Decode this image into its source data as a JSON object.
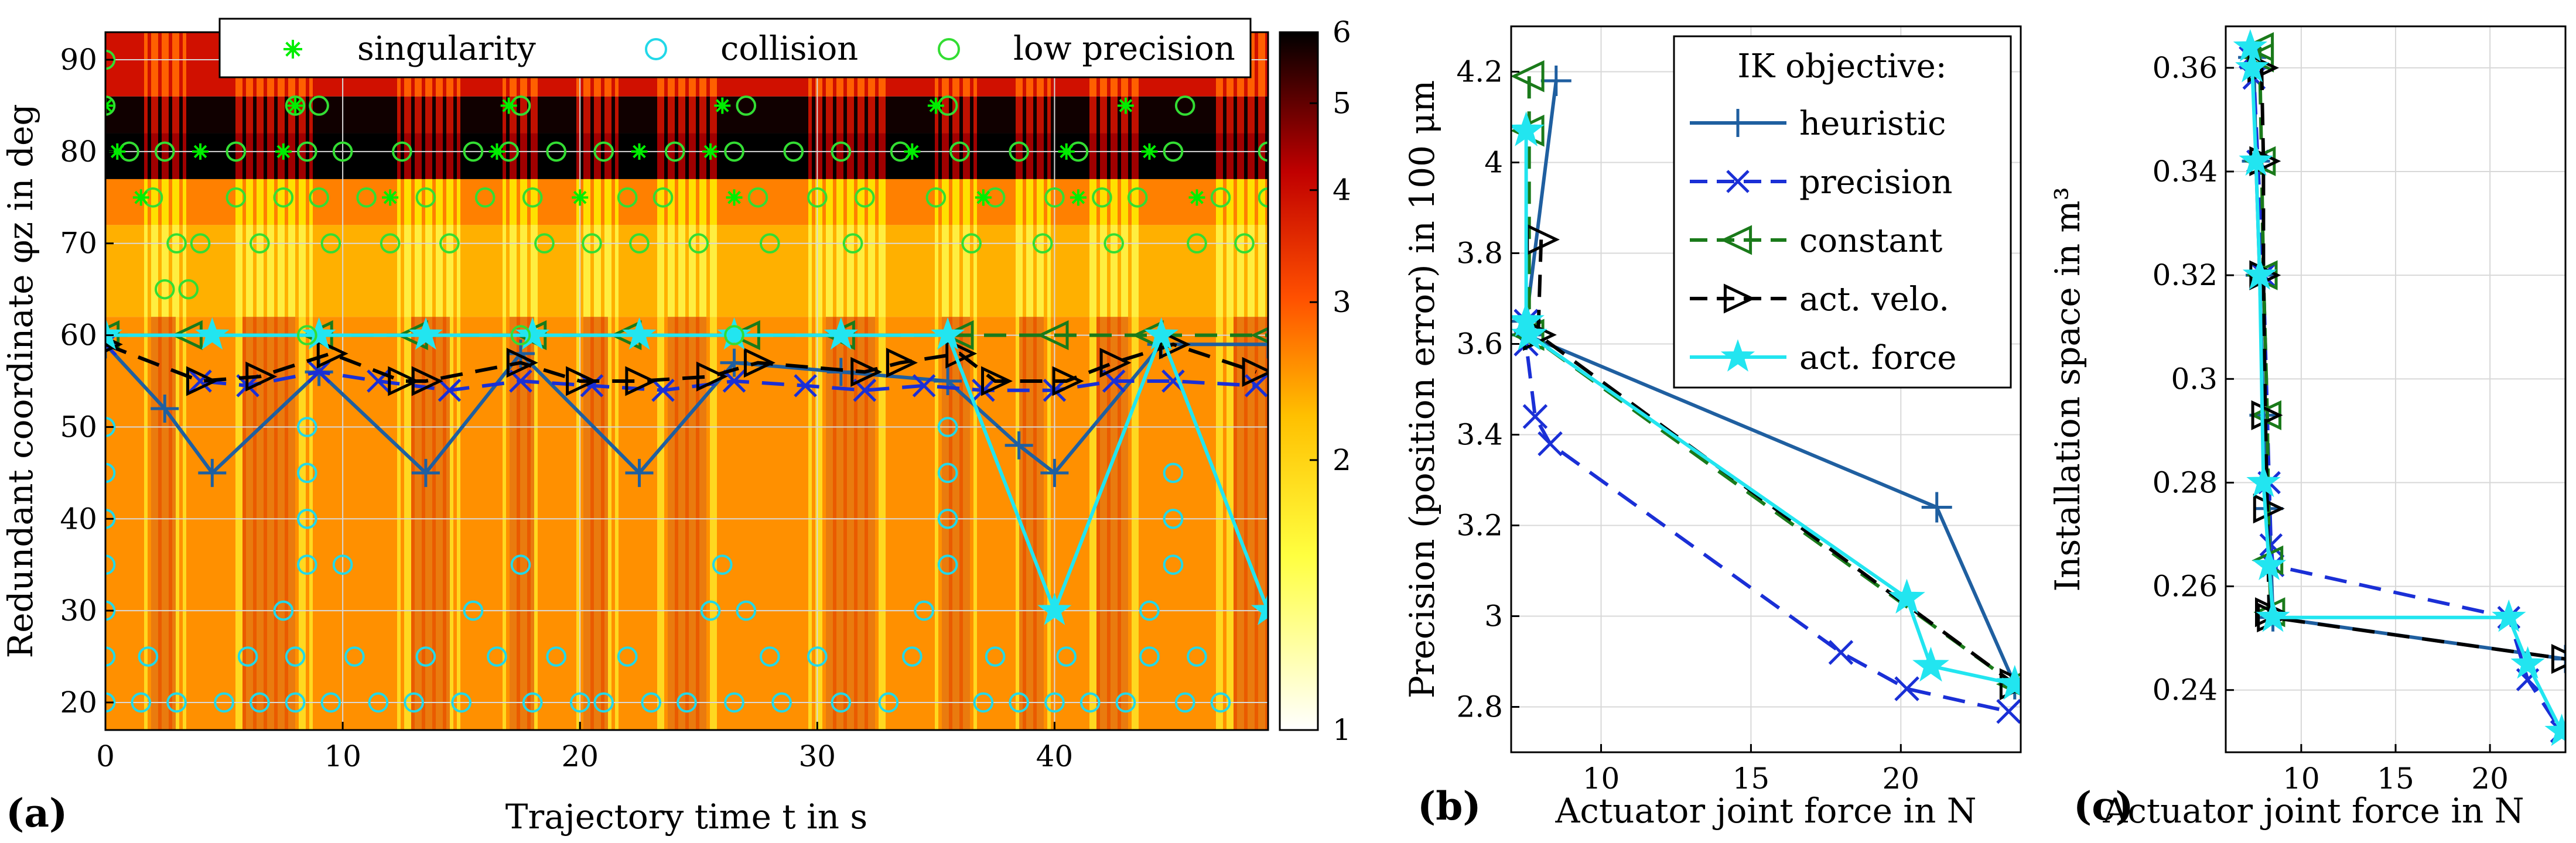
{
  "chart_data": [
    {
      "id": "a",
      "type": "heatmap",
      "panel_label": "(a)",
      "xlabel": "Trajectory time t in s",
      "ylabel": "Redundant coordinate φz in deg",
      "xlim": [
        0,
        49
      ],
      "ylim": [
        17,
        93
      ],
      "xticks": [
        0,
        10,
        20,
        30,
        40
      ],
      "yticks": [
        20,
        30,
        40,
        50,
        60,
        70,
        80,
        90
      ],
      "grid": true,
      "legend_position": "top",
      "colorbar": {
        "scale": "log",
        "range": [
          1,
          6
        ],
        "ticks": [
          1,
          2,
          3,
          4,
          5,
          6
        ],
        "colormap": [
          "#ffffff",
          "#ffff40",
          "#ffc000",
          "#ff5000",
          "#c00000",
          "#000000"
        ]
      },
      "legend": [
        {
          "label": "singularity",
          "marker": "asterisk",
          "color": "#00ee00"
        },
        {
          "label": "collision",
          "marker": "circle",
          "color": "#22d8e8"
        },
        {
          "label": "low precision",
          "marker": "circle",
          "color": "#33dd33"
        }
      ],
      "scatter": {
        "singularity": [
          [
            0,
            85
          ],
          [
            0.5,
            80
          ],
          [
            1.5,
            75
          ],
          [
            4,
            80
          ],
          [
            7.5,
            80
          ],
          [
            8,
            85
          ],
          [
            12,
            75
          ],
          [
            17,
            85
          ],
          [
            16.5,
            80
          ],
          [
            20,
            75
          ],
          [
            22.5,
            80
          ],
          [
            25.5,
            80
          ],
          [
            26,
            85
          ],
          [
            26.5,
            75
          ],
          [
            34,
            80
          ],
          [
            35,
            85
          ],
          [
            37,
            75
          ],
          [
            40.5,
            80
          ],
          [
            41,
            75
          ],
          [
            43,
            85
          ],
          [
            44,
            80
          ],
          [
            46,
            75
          ]
        ],
        "collision": [
          [
            0,
            20
          ],
          [
            0,
            25
          ],
          [
            0,
            30
          ],
          [
            0,
            35
          ],
          [
            0,
            40
          ],
          [
            0,
            45
          ],
          [
            0,
            50
          ],
          [
            1.5,
            20
          ],
          [
            1.8,
            25
          ],
          [
            3,
            20
          ],
          [
            5,
            20
          ],
          [
            6,
            25
          ],
          [
            6.5,
            20
          ],
          [
            7.5,
            30
          ],
          [
            8,
            20
          ],
          [
            8,
            25
          ],
          [
            8.5,
            35
          ],
          [
            8.5,
            40
          ],
          [
            8.5,
            45
          ],
          [
            8.5,
            50
          ],
          [
            9.5,
            20
          ],
          [
            10,
            35
          ],
          [
            10.5,
            25
          ],
          [
            11.5,
            20
          ],
          [
            13,
            20
          ],
          [
            13.5,
            25
          ],
          [
            15,
            20
          ],
          [
            15.5,
            30
          ],
          [
            16.5,
            25
          ],
          [
            17.5,
            35
          ],
          [
            18,
            20
          ],
          [
            19,
            25
          ],
          [
            20,
            20
          ],
          [
            21,
            20
          ],
          [
            22,
            25
          ],
          [
            23,
            20
          ],
          [
            24.5,
            20
          ],
          [
            25.5,
            30
          ],
          [
            26,
            35
          ],
          [
            26.5,
            20
          ],
          [
            27,
            30
          ],
          [
            28,
            25
          ],
          [
            28.5,
            20
          ],
          [
            30,
            25
          ],
          [
            31,
            20
          ],
          [
            33,
            20
          ],
          [
            34,
            25
          ],
          [
            34.5,
            30
          ],
          [
            35.5,
            35
          ],
          [
            35.5,
            40
          ],
          [
            35.5,
            45
          ],
          [
            35.5,
            50
          ],
          [
            37,
            20
          ],
          [
            37.5,
            25
          ],
          [
            38.5,
            20
          ],
          [
            40,
            20
          ],
          [
            40.5,
            25
          ],
          [
            41.5,
            20
          ],
          [
            43,
            20
          ],
          [
            44,
            25
          ],
          [
            45.5,
            20
          ],
          [
            46,
            25
          ],
          [
            47,
            20
          ],
          [
            44,
            30
          ],
          [
            45,
            35
          ],
          [
            45,
            40
          ],
          [
            45,
            45
          ]
        ],
        "low_precision": [
          [
            0,
            90
          ],
          [
            0,
            85
          ],
          [
            1,
            80
          ],
          [
            2,
            75
          ],
          [
            2.5,
            80
          ],
          [
            3,
            70
          ],
          [
            2.5,
            65
          ],
          [
            4,
            70
          ],
          [
            5.5,
            80
          ],
          [
            5.5,
            75
          ],
          [
            6.5,
            70
          ],
          [
            7.5,
            75
          ],
          [
            8.5,
            80
          ],
          [
            8,
            85
          ],
          [
            9,
            85
          ],
          [
            9,
            75
          ],
          [
            9.5,
            70
          ],
          [
            10,
            80
          ],
          [
            11,
            75
          ],
          [
            12,
            70
          ],
          [
            12.5,
            80
          ],
          [
            13.5,
            75
          ],
          [
            14.5,
            70
          ],
          [
            15.5,
            80
          ],
          [
            16,
            75
          ],
          [
            17,
            80
          ],
          [
            17.5,
            85
          ],
          [
            18,
            75
          ],
          [
            18.5,
            70
          ],
          [
            19,
            80
          ],
          [
            20.5,
            70
          ],
          [
            21,
            80
          ],
          [
            22,
            75
          ],
          [
            22.5,
            70
          ],
          [
            23.5,
            75
          ],
          [
            24,
            80
          ],
          [
            25,
            70
          ],
          [
            26.5,
            80
          ],
          [
            27,
            85
          ],
          [
            27.5,
            75
          ],
          [
            28,
            70
          ],
          [
            29,
            80
          ],
          [
            30,
            75
          ],
          [
            31,
            80
          ],
          [
            31.5,
            70
          ],
          [
            32,
            75
          ],
          [
            33.5,
            80
          ],
          [
            35,
            75
          ],
          [
            35.5,
            85
          ],
          [
            36,
            80
          ],
          [
            36.5,
            70
          ],
          [
            37.5,
            75
          ],
          [
            38.5,
            80
          ],
          [
            39.5,
            70
          ],
          [
            40,
            75
          ],
          [
            41,
            80
          ],
          [
            42,
            75
          ],
          [
            42.5,
            70
          ],
          [
            43.5,
            75
          ],
          [
            45,
            80
          ],
          [
            45.5,
            85
          ],
          [
            46,
            70
          ],
          [
            47,
            75
          ],
          [
            48,
            70
          ],
          [
            49,
            80
          ],
          [
            49,
            75
          ],
          [
            3.5,
            65
          ],
          [
            8.5,
            60
          ],
          [
            17.5,
            60
          ],
          [
            26.5,
            60
          ]
        ]
      },
      "series": [
        {
          "name": "heuristic",
          "color": "#1f5fa0",
          "marker": "plus",
          "dash": "solid",
          "x": [
            0,
            2.5,
            4.5,
            9,
            13.5,
            17.5,
            22.5,
            26.5,
            31,
            35.5,
            38.5,
            40,
            44.5,
            49
          ],
          "y": [
            59,
            52,
            45,
            56,
            45,
            58,
            45,
            57,
            56,
            55,
            48,
            45,
            59,
            59
          ]
        },
        {
          "name": "precision",
          "color": "#1a2fd6",
          "marker": "x",
          "dash": "dash",
          "x": [
            0,
            4,
            6,
            9,
            11.5,
            14.5,
            17.5,
            20.5,
            23.5,
            26.5,
            29.5,
            32,
            34.5,
            37,
            40,
            42.5,
            45,
            48.5
          ],
          "y": [
            59,
            55,
            54.5,
            56,
            55,
            54,
            55,
            54.5,
            54,
            55,
            54.5,
            54,
            54.5,
            54,
            54,
            55,
            55,
            54.5
          ]
        },
        {
          "name": "constant",
          "color": "#1a7a1a",
          "marker": "triangle-left",
          "dash": "dash",
          "x": [
            0,
            3.5,
            9,
            13,
            18,
            22,
            27,
            31,
            36,
            40,
            44,
            49
          ],
          "y": [
            60,
            60,
            60,
            60,
            60,
            60,
            60,
            60,
            60,
            60,
            60,
            60
          ]
        },
        {
          "name": "act. velo.",
          "color": "#000000",
          "marker": "triangle-right",
          "dash": "dash",
          "x": [
            0,
            4,
            6.5,
            9.5,
            12.5,
            13.5,
            17.5,
            20,
            22.5,
            25.5,
            27.5,
            32,
            33.5,
            36,
            37.5,
            40.5,
            42.5,
            45,
            48.5
          ],
          "y": [
            59,
            55,
            55.5,
            58,
            55,
            55,
            57,
            55,
            55,
            55.5,
            57,
            56,
            57,
            58,
            55,
            55,
            57,
            59,
            56
          ]
        },
        {
          "name": "act. force",
          "color": "#22e5f0",
          "marker": "star",
          "dash": "solid",
          "x": [
            0,
            4.5,
            9,
            13.5,
            18,
            22.5,
            26.5,
            31,
            35.5,
            40,
            44.5,
            49
          ],
          "y": [
            60,
            60,
            60,
            60,
            60,
            60,
            60,
            60,
            60,
            30,
            60,
            30
          ]
        }
      ]
    },
    {
      "id": "b",
      "type": "line",
      "panel_label": "(b)",
      "xlabel": "Actuator joint force in N",
      "ylabel": "Precision (position error) in 100 μm",
      "xlim": [
        7,
        24
      ],
      "ylim": [
        2.7,
        4.3
      ],
      "xticks": [
        10,
        15,
        20
      ],
      "yticks": [
        2.8,
        3.0,
        3.2,
        3.4,
        3.6,
        3.8,
        4.0,
        4.2
      ],
      "ytick_labels": [
        "2.8",
        "3",
        "3.2",
        "3.4",
        "3.6",
        "3.8",
        "4",
        "4.2"
      ],
      "grid": true,
      "legend_title": "IK objective:",
      "legend_position": "top-right",
      "series": [
        {
          "name": "heuristic",
          "color": "#1f5fa0",
          "marker": "plus",
          "dash": "solid",
          "x": [
            8.5,
            7.5,
            7.5,
            21.2,
            23.8
          ],
          "y": [
            4.18,
            3.65,
            3.62,
            3.24,
            2.85
          ]
        },
        {
          "name": "precision",
          "color": "#1a2fd6",
          "marker": "x",
          "dash": "dash",
          "x": [
            7.5,
            7.5,
            7.8,
            8.3,
            18.0,
            20.2,
            23.6
          ],
          "y": [
            3.65,
            3.6,
            3.44,
            3.38,
            2.92,
            2.84,
            2.79
          ]
        },
        {
          "name": "constant",
          "color": "#1a7a1a",
          "marker": "triangle-left",
          "dash": "dash",
          "x": [
            7.6,
            7.6,
            7.6,
            23.8
          ],
          "y": [
            4.19,
            4.07,
            3.62,
            2.85
          ]
        },
        {
          "name": "act. velo.",
          "color": "#000000",
          "marker": "triangle-right",
          "dash": "dash",
          "x": [
            8.0,
            7.9,
            23.8
          ],
          "y": [
            3.83,
            3.62,
            2.85
          ]
        },
        {
          "name": "act. force",
          "color": "#22e5f0",
          "marker": "star",
          "dash": "solid",
          "x": [
            7.5,
            7.5,
            7.6,
            20.2,
            21.0,
            23.8
          ],
          "y": [
            4.07,
            3.65,
            3.62,
            3.04,
            2.89,
            2.85
          ]
        }
      ]
    },
    {
      "id": "c",
      "type": "line",
      "panel_label": "(c)",
      "xlabel": "Actuator joint force in N",
      "ylabel": "Installation space in m³",
      "xlim": [
        6,
        24
      ],
      "ylim": [
        0.228,
        0.368
      ],
      "xticks": [
        10,
        15,
        20
      ],
      "yticks": [
        0.24,
        0.26,
        0.28,
        0.3,
        0.32,
        0.34,
        0.36
      ],
      "ytick_labels": [
        "0.24",
        "0.26",
        "0.28",
        "0.3",
        "0.32",
        "0.34",
        "0.36"
      ],
      "grid": true,
      "series": [
        {
          "name": "heuristic",
          "color": "#1f5fa0",
          "marker": "plus",
          "dash": "solid",
          "x": [
            7.4,
            7.5,
            7.6,
            7.8,
            8.0,
            8.3,
            8.5,
            24
          ],
          "y": [
            0.362,
            0.36,
            0.342,
            0.32,
            0.293,
            0.275,
            0.254,
            0.246
          ]
        },
        {
          "name": "precision",
          "color": "#1a2fd6",
          "marker": "x",
          "dash": "dash",
          "x": [
            7.3,
            7.5,
            7.7,
            8.0,
            8.3,
            8.4,
            8.5,
            21.0,
            22.0,
            23.8
          ],
          "y": [
            0.362,
            0.358,
            0.342,
            0.32,
            0.28,
            0.268,
            0.264,
            0.254,
            0.242,
            0.232
          ]
        },
        {
          "name": "constant",
          "color": "#1a7a1a",
          "marker": "triangle-left",
          "dash": "dash",
          "x": [
            7.8,
            7.8,
            7.9,
            8.0,
            8.2,
            8.3,
            8.4
          ],
          "y": [
            0.364,
            0.362,
            0.342,
            0.32,
            0.293,
            0.265,
            0.255
          ]
        },
        {
          "name": "act. velo.",
          "color": "#000000",
          "marker": "triangle-right",
          "dash": "dash",
          "x": [
            7.9,
            8.0,
            8.0,
            8.1,
            8.2,
            8.3,
            8.4,
            24
          ],
          "y": [
            0.36,
            0.342,
            0.32,
            0.293,
            0.275,
            0.255,
            0.254,
            0.246
          ]
        },
        {
          "name": "act. force",
          "color": "#22e5f0",
          "marker": "star",
          "dash": "solid",
          "x": [
            7.3,
            7.4,
            7.6,
            7.8,
            8.0,
            8.3,
            8.5,
            21.0,
            22.0,
            23.8
          ],
          "y": [
            0.364,
            0.36,
            0.342,
            0.32,
            0.28,
            0.264,
            0.254,
            0.254,
            0.245,
            0.232
          ]
        }
      ]
    }
  ]
}
